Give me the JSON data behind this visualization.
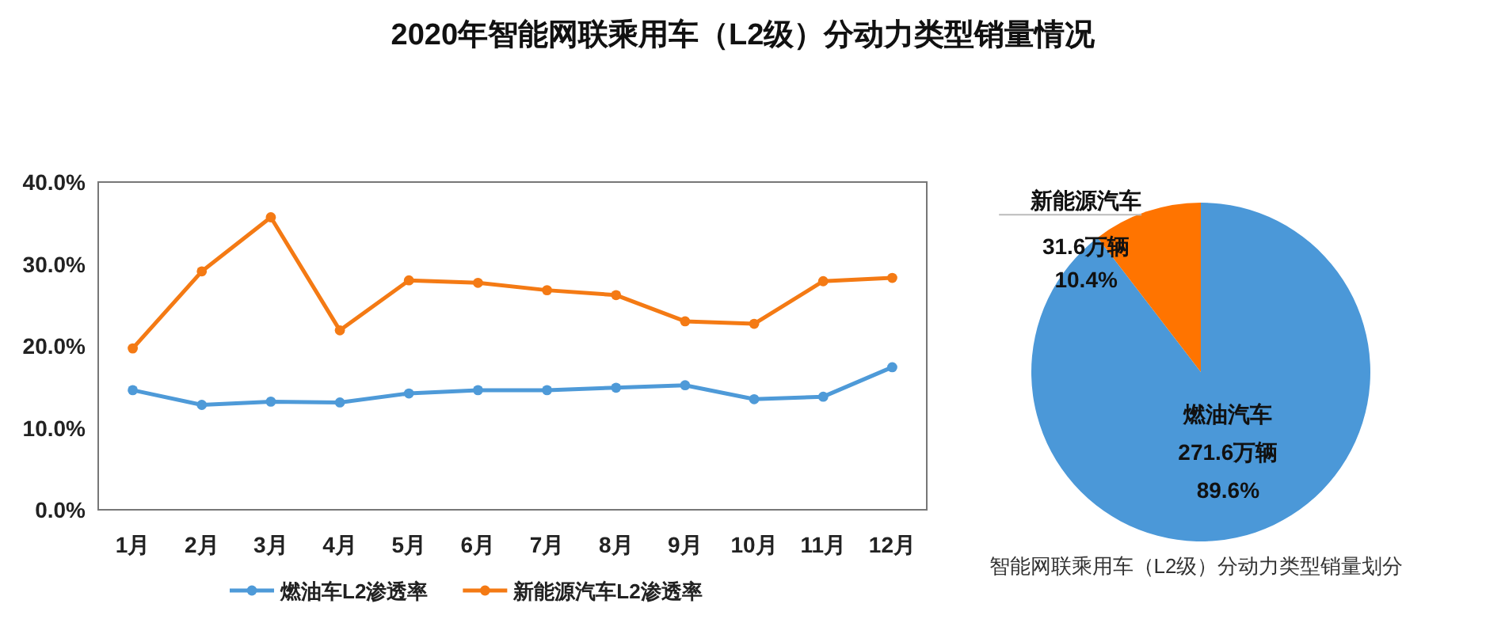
{
  "chart_data": [
    {
      "type": "line",
      "title": "2020年智能网联乘用车（L2级）分动力类型销量情况",
      "categories": [
        "1月",
        "2月",
        "3月",
        "4月",
        "5月",
        "6月",
        "7月",
        "8月",
        "9月",
        "10月",
        "11月",
        "12月"
      ],
      "series": [
        {
          "name": "燃油车L2渗透率",
          "color": "#4e9ad8",
          "values": [
            14.6,
            12.8,
            13.2,
            13.1,
            14.2,
            14.6,
            14.6,
            14.9,
            15.2,
            13.5,
            13.8,
            17.4
          ]
        },
        {
          "name": "新能源汽车L2渗透率",
          "color": "#f47a14",
          "values": [
            19.7,
            29.1,
            35.7,
            21.9,
            28.0,
            27.7,
            26.8,
            26.2,
            23.0,
            22.7,
            27.9,
            28.3
          ]
        }
      ],
      "ylim": [
        0,
        40
      ],
      "yticks": [
        {
          "value": 0,
          "label": "0.0%"
        },
        {
          "value": 10,
          "label": "10.0%"
        },
        {
          "value": 20,
          "label": "20.0%"
        },
        {
          "value": 30,
          "label": "30.0%"
        },
        {
          "value": 40,
          "label": "40.0%"
        }
      ],
      "grid": false,
      "legend": "bottom",
      "marker": "circle",
      "line_style": "solid"
    },
    {
      "type": "pie",
      "title": "智能网联乘用车（L2级）分动力类型销量划分",
      "categories": [
        "燃油汽车",
        "新能源汽车"
      ],
      "values": [
        271.6,
        31.6
      ],
      "colors": [
        "#4b98d8",
        "#ff7400"
      ],
      "value_labels": [
        "271.6万辆\n89.6%",
        "31.6万辆\n10.4%"
      ]
    }
  ]
}
